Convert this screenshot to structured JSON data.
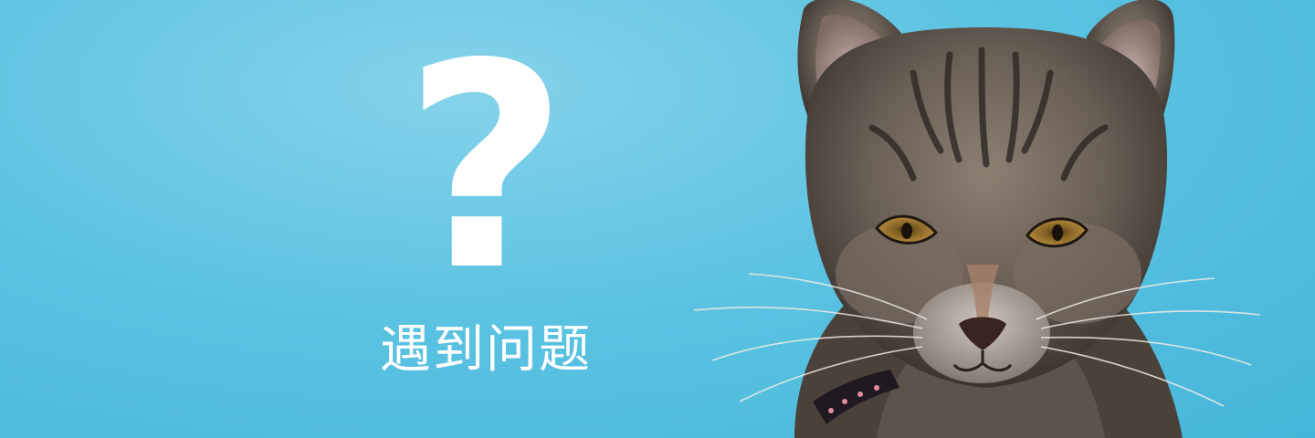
{
  "banner": {
    "symbol": "?",
    "caption": "遇到问题",
    "background_color": "#5cc3e2",
    "text_color": "#ffffff"
  },
  "photo": {
    "subject": "tabby-kitten-icon"
  }
}
